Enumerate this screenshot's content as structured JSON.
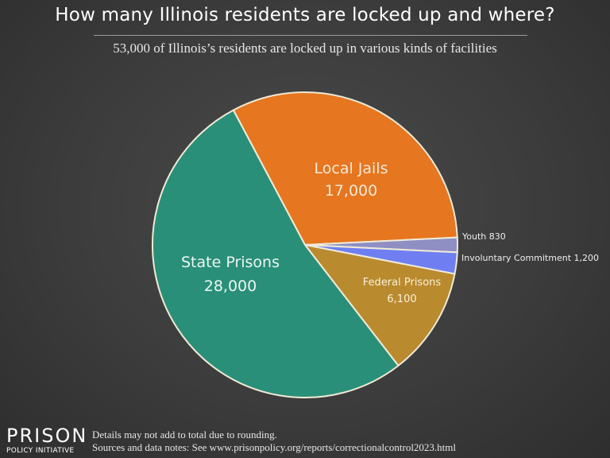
{
  "header": {
    "title": "How many Illinois residents are locked up and where?",
    "subtitle": "53,000 of Illinois’s residents are locked up in various kinds of facilities"
  },
  "chart_data": {
    "type": "pie",
    "title": "How many Illinois residents are locked up and where?",
    "subtitle": "53,000 of Illinois’s residents are locked up in various kinds of facilities",
    "total": 53000,
    "slices": [
      {
        "label": "Local Jails",
        "value": 17000,
        "display": "17,000",
        "color": "#e6761f"
      },
      {
        "label": "Youth",
        "value": 830,
        "display": "830",
        "color": "#8f8fc4"
      },
      {
        "label": "Involuntary Commitment",
        "value": 1200,
        "display": "1,200",
        "color": "#6f7ff2"
      },
      {
        "label": "Federal Prisons",
        "value": 6100,
        "display": "6,100",
        "color": "#b98a2e"
      },
      {
        "label": "State Prisons",
        "value": 28000,
        "display": "28,000",
        "color": "#2a8f78"
      }
    ],
    "legend": "none (inline and external labels)"
  },
  "labels": {
    "local_jails": {
      "name": "Local Jails",
      "value": "17,000"
    },
    "state_prisons": {
      "name": "State Prisons",
      "value": "28,000"
    },
    "federal_prisons": {
      "name": "Federal Prisons",
      "value": "6,100"
    },
    "youth": "Youth 830",
    "involuntary": "Involuntary Commitment 1,200"
  },
  "footer": {
    "logo_main": "PRISON",
    "logo_sub": "POLICY INITIATIVE",
    "note1": "Details may not add to total due to rounding.",
    "note2": "Sources and data notes: See www.prisonpolicy.org/reports/correctionalcontrol2023.html"
  }
}
